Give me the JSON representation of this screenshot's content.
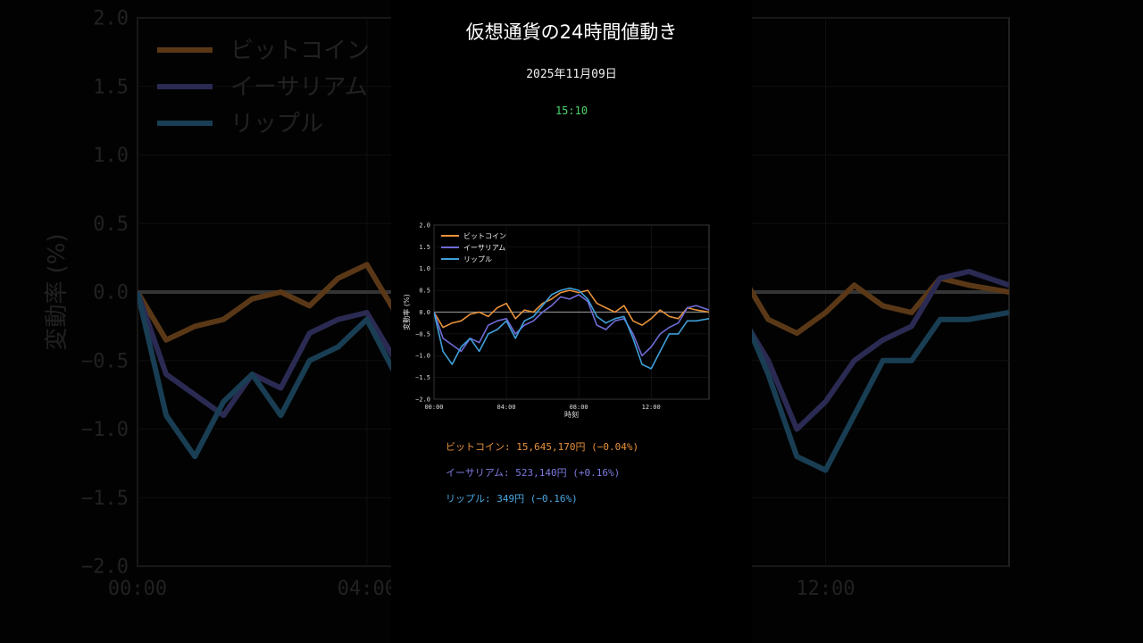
{
  "header": {
    "title": "仮想通貨の24時間値動き",
    "date": "2025年11月09日",
    "time": "15:10"
  },
  "colors": {
    "btc": "#e8913a",
    "eth": "#6f6bd6",
    "xrp": "#3f9fd8",
    "time": "#4ad66d"
  },
  "prices": [
    {
      "label": "ビットコイン: 15,645,170円 (−0.04%)",
      "color": "#e8913a"
    },
    {
      "label": "イーサリアム: 523,140円 (+0.16%)",
      "color": "#7d7ae0"
    },
    {
      "label": "リップル: 349円 (−0.16%)",
      "color": "#4aa6e0"
    }
  ],
  "chart_data": {
    "type": "line",
    "xlabel": "時刻",
    "ylabel": "変動率 (%)",
    "xlim": [
      0,
      15.2
    ],
    "ylim": [
      -2.0,
      2.0
    ],
    "xticks": [
      0,
      4,
      8,
      12
    ],
    "xtick_labels": [
      "00:00",
      "04:00",
      "08:00",
      "12:00"
    ],
    "yticks": [
      -2.0,
      -1.5,
      -1.0,
      -0.5,
      0.0,
      0.5,
      1.0,
      1.5,
      2.0
    ],
    "ytick_labels": [
      "−2.0",
      "−1.5",
      "−1.0",
      "−0.5",
      "0.0",
      "0.5",
      "1.0",
      "1.5",
      "2.0"
    ],
    "grid": true,
    "legend_position": "top-left",
    "x": [
      0.0,
      0.5,
      1.0,
      1.5,
      2.0,
      2.5,
      3.0,
      3.5,
      4.0,
      4.5,
      5.0,
      5.5,
      6.0,
      6.5,
      7.0,
      7.5,
      8.0,
      8.5,
      9.0,
      9.5,
      10.0,
      10.5,
      11.0,
      11.5,
      12.0,
      12.5,
      13.0,
      13.5,
      14.0,
      14.5,
      15.2
    ],
    "series": [
      {
        "name": "ビットコイン",
        "color": "#e8913a",
        "values": [
          0.0,
          -0.35,
          -0.25,
          -0.2,
          -0.05,
          0.0,
          -0.1,
          0.1,
          0.2,
          -0.15,
          0.05,
          0.0,
          0.2,
          0.3,
          0.45,
          0.5,
          0.45,
          0.5,
          0.2,
          0.1,
          0.0,
          0.15,
          -0.2,
          -0.3,
          -0.15,
          0.05,
          -0.1,
          -0.15,
          0.1,
          0.05,
          0.0
        ]
      },
      {
        "name": "イーサリアム",
        "color": "#6f6bd6",
        "values": [
          0.0,
          -0.6,
          -0.75,
          -0.9,
          -0.6,
          -0.7,
          -0.3,
          -0.2,
          -0.15,
          -0.5,
          -0.3,
          -0.2,
          0.0,
          0.15,
          0.35,
          0.3,
          0.4,
          0.25,
          -0.3,
          -0.4,
          -0.2,
          -0.15,
          -0.5,
          -1.0,
          -0.8,
          -0.5,
          -0.35,
          -0.25,
          0.1,
          0.15,
          0.05
        ]
      },
      {
        "name": "リップル",
        "color": "#3f9fd8",
        "values": [
          0.0,
          -0.9,
          -1.2,
          -0.8,
          -0.6,
          -0.9,
          -0.5,
          -0.4,
          -0.2,
          -0.6,
          -0.2,
          -0.1,
          0.15,
          0.4,
          0.5,
          0.55,
          0.5,
          0.3,
          -0.1,
          -0.25,
          -0.15,
          -0.1,
          -0.6,
          -1.2,
          -1.3,
          -0.9,
          -0.5,
          -0.5,
          -0.2,
          -0.2,
          -0.15
        ]
      }
    ]
  }
}
